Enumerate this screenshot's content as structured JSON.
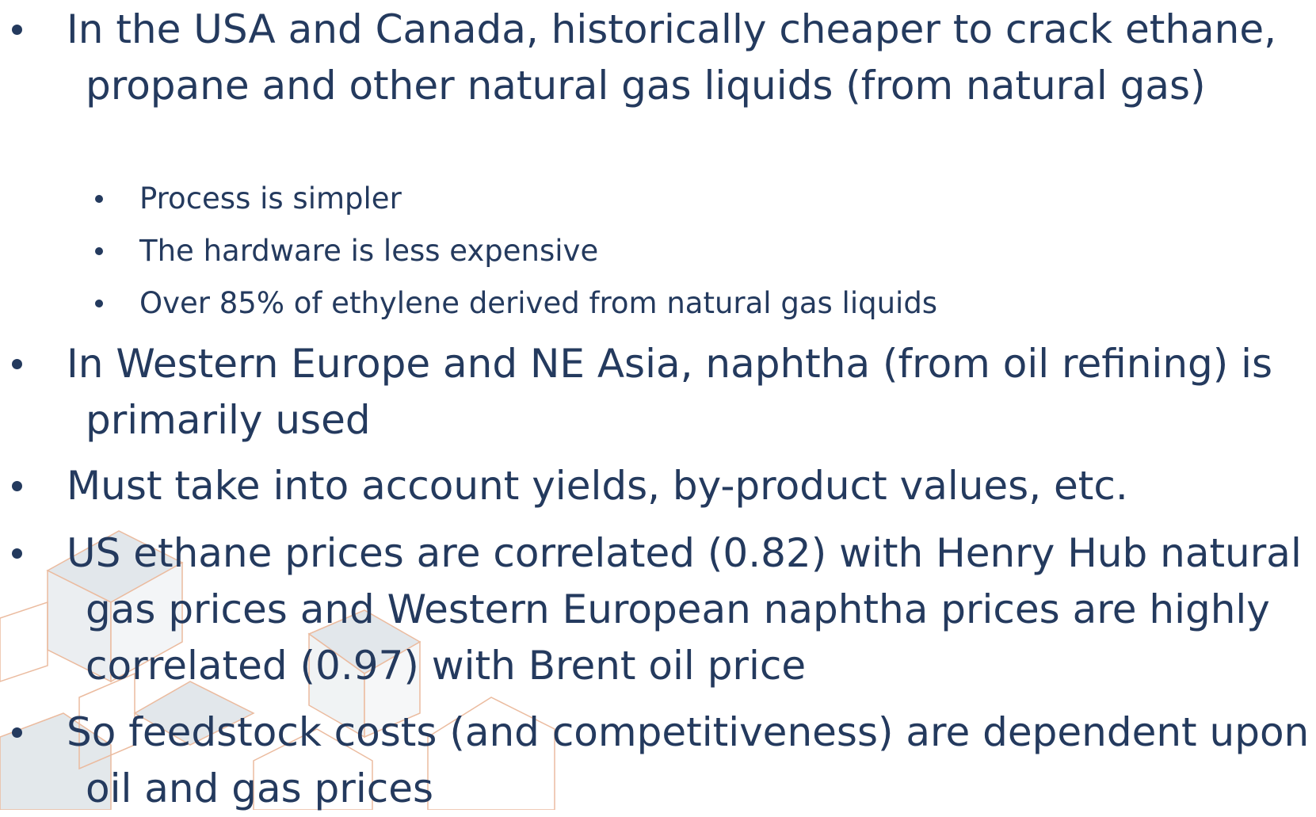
{
  "bullets": [
    {
      "text": "In the USA and Canada, historically cheaper to crack ethane, propane and other natural gas liquids (from natural gas)",
      "subbullets": [
        "Process is simpler",
        "The hardware is less expensive",
        "Over 85% of ethylene derived from natural gas liquids"
      ]
    },
    {
      "text": "In Western Europe and NE Asia, naphtha (from oil refining) is primarily used"
    },
    {
      "text": "Must take into account yields, by-product values, etc."
    },
    {
      "text": "US ethane prices are correlated (0.82) with Henry Hub natural gas prices and Western European naphtha prices are highly correlated (0.97) with Brent oil price"
    },
    {
      "text": "So feedstock costs (and competitiveness) are dependent upon oil and gas prices"
    }
  ]
}
